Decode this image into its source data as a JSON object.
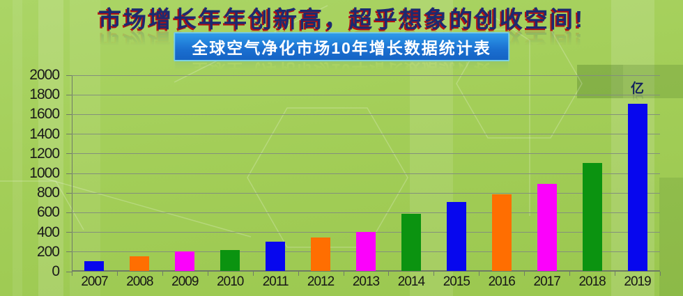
{
  "header": {
    "title": "市场增长年年创新高，超乎想象的创收空间!",
    "subtitle": "全球空气净化市场10年增长数据统计表"
  },
  "chart_data": {
    "type": "bar",
    "title": "全球空气净化市场10年增长数据统计表",
    "categories": [
      "2007",
      "2008",
      "2009",
      "2010",
      "2011",
      "2012",
      "2013",
      "2014",
      "2015",
      "2016",
      "2017",
      "2018",
      "2019"
    ],
    "values": [
      100,
      150,
      200,
      210,
      300,
      340,
      400,
      580,
      700,
      780,
      890,
      1100,
      1700
    ],
    "unit_label": "亿",
    "xlabel": "",
    "ylabel": "",
    "ylim": [
      0,
      2000
    ],
    "ytick_step": 200,
    "grid": true,
    "legend": "none",
    "palette": [
      "#0707ee",
      "#ff6e01",
      "#fb02fb",
      "#0b9310"
    ],
    "colors": {
      "title_text": "#1c2a70",
      "title_shadow": "#b21212",
      "subtitle_bg": "#1a6fd0",
      "subtitle_text": "#ffffff",
      "background_green": "#a3ce58",
      "gridline": "#83907b",
      "axis_text": "#1a1a1a"
    }
  }
}
